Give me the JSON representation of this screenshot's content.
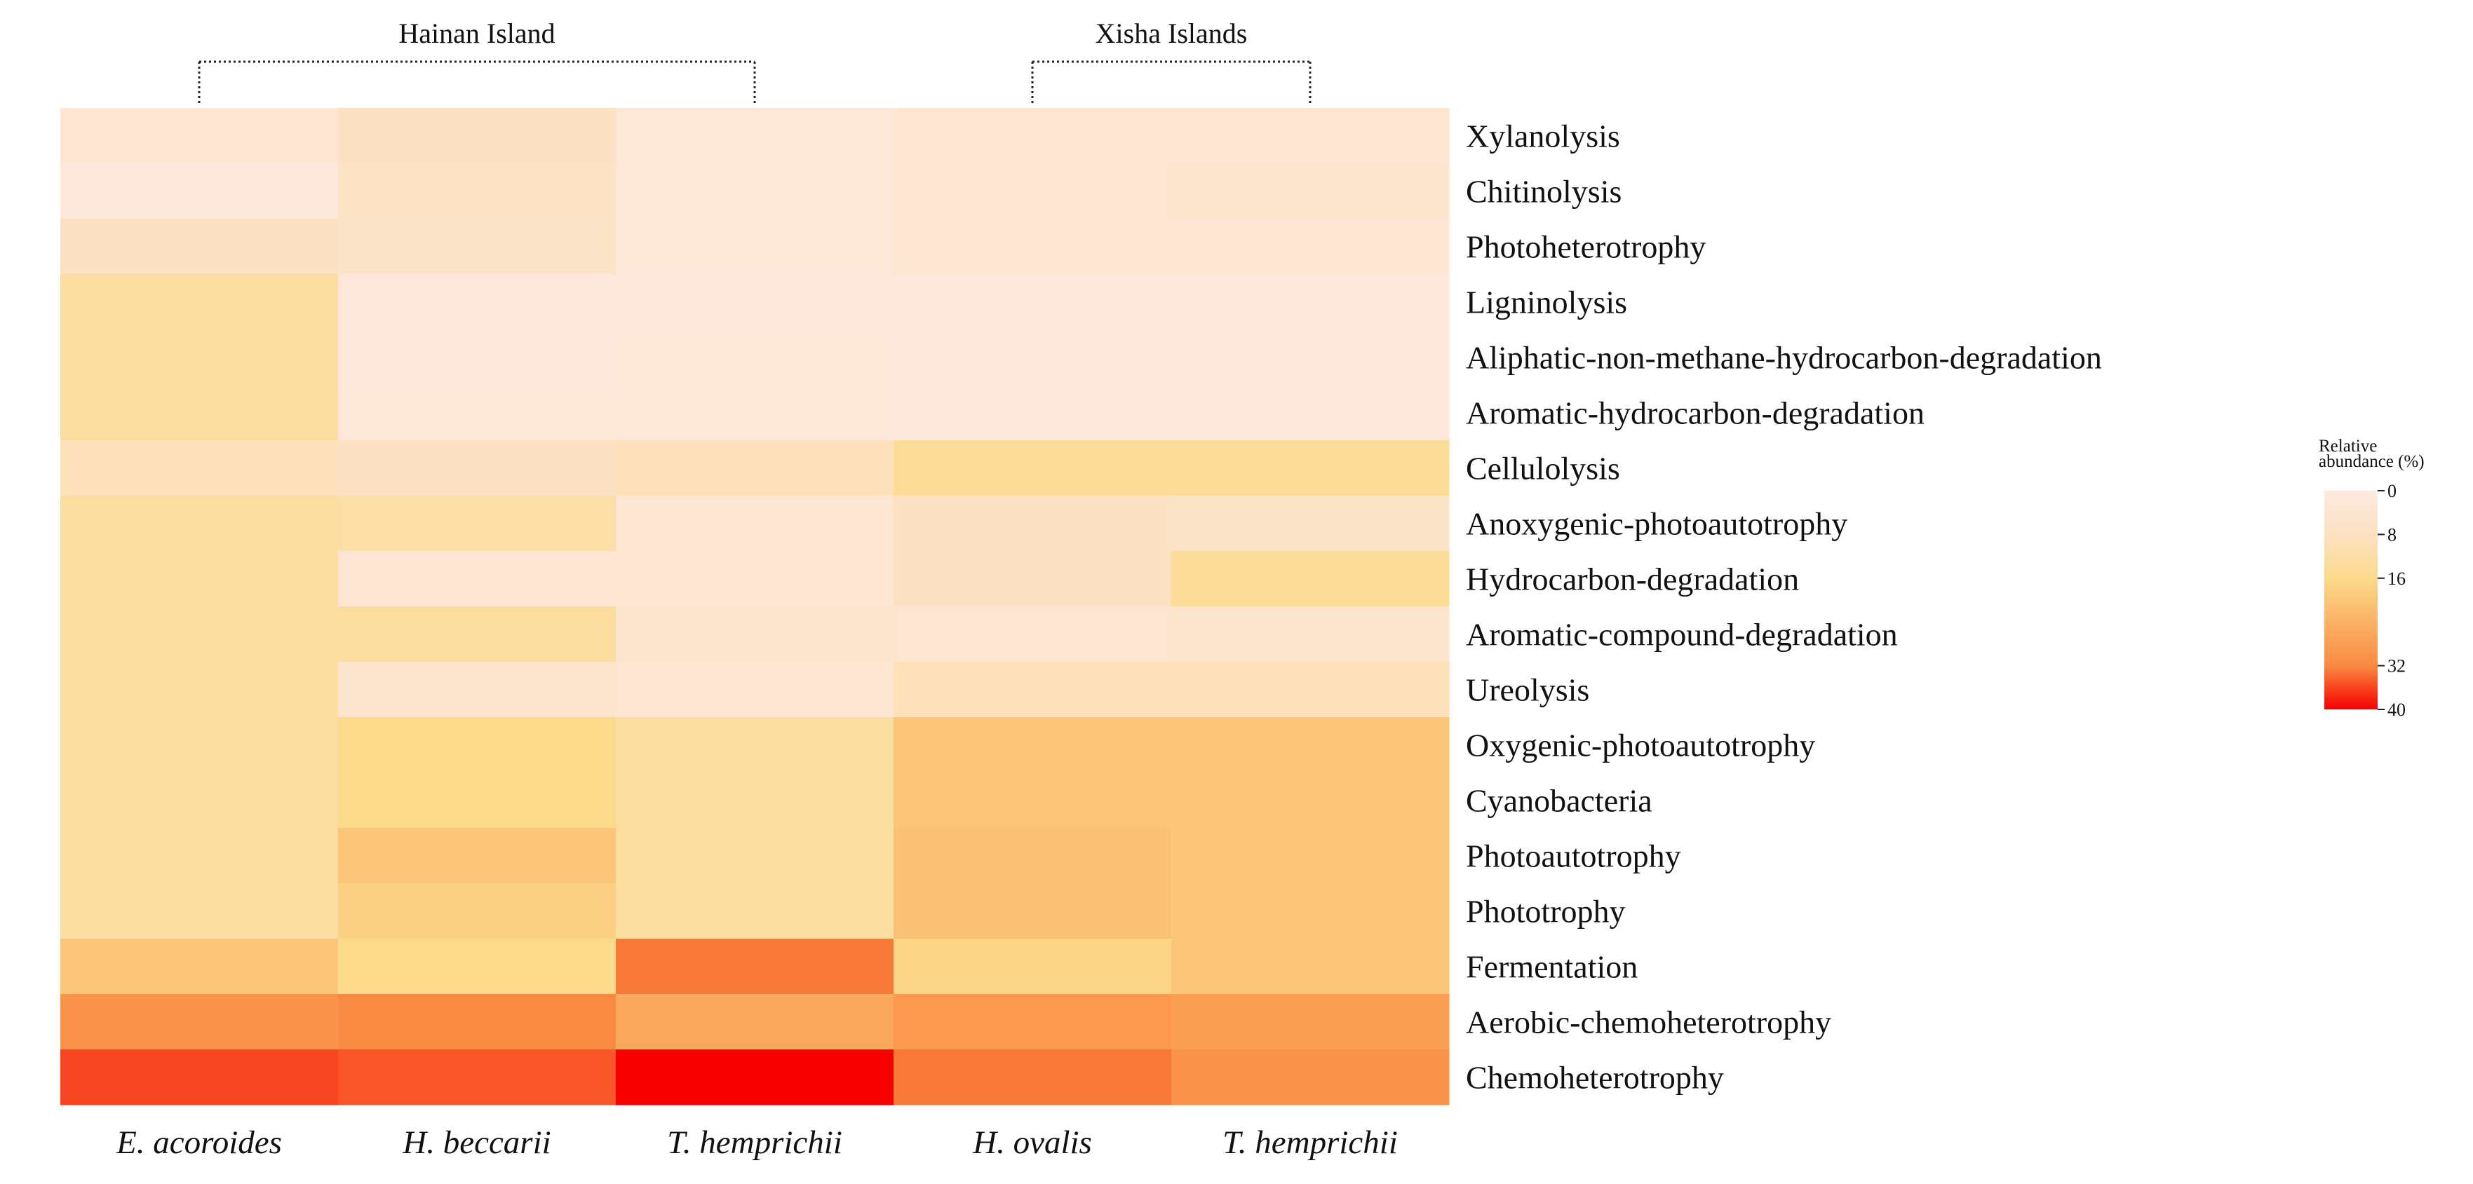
{
  "chart_data": {
    "type": "heatmap",
    "title": "",
    "columns": [
      "E. acoroides",
      "H. beccarii",
      "T. hemprichii",
      "H. ovalis",
      "T. hemprichii"
    ],
    "column_groups": [
      {
        "label": "Hainan Island",
        "columns": [
          0,
          1,
          2
        ]
      },
      {
        "label": "Xisha Islands",
        "columns": [
          3,
          4
        ]
      }
    ],
    "rows": [
      "Xylanolysis",
      "Chitinolysis",
      "Photoheterotrophy",
      "Ligninolysis",
      "Aliphatic-non-methane-hydrocarbon-degradation",
      "Aromatic-hydrocarbon-degradation",
      "Cellulolysis",
      "Anoxygenic-photoautotrophy",
      "Hydrocarbon-degradation",
      "Aromatic-compound-degradation",
      "Ureolysis",
      "Oxygenic-photoautotrophy",
      "Cyanobacteria",
      "Photoautotrophy",
      "Phototrophy",
      "Fermentation",
      "Aerobic-chemoheterotrophy",
      "Chemoheterotrophy"
    ],
    "values": [
      [
        3,
        8,
        2,
        4,
        4
      ],
      [
        1,
        7,
        2,
        4,
        5
      ],
      [
        8,
        6,
        2,
        4,
        3
      ],
      [
        13,
        1,
        1,
        1,
        1
      ],
      [
        13,
        1,
        2,
        1,
        1
      ],
      [
        13,
        2,
        2,
        1,
        1
      ],
      [
        9,
        8,
        9,
        14,
        14
      ],
      [
        13,
        12,
        4,
        8,
        6
      ],
      [
        13,
        4,
        3,
        8,
        14
      ],
      [
        13,
        13,
        5,
        4,
        5
      ],
      [
        13,
        5,
        3,
        9,
        9
      ],
      [
        13,
        16,
        13,
        20,
        20
      ],
      [
        13,
        16,
        13,
        20,
        20
      ],
      [
        13,
        20,
        13,
        21,
        20
      ],
      [
        13,
        18,
        13,
        21,
        20
      ],
      [
        20,
        16,
        33,
        17,
        20
      ],
      [
        30,
        32,
        26,
        29,
        28
      ],
      [
        36,
        35,
        40,
        33,
        30
      ]
    ],
    "colorbar": {
      "title": [
        "Relative",
        "abundance (%)"
      ],
      "range": [
        0,
        40
      ],
      "ticks": [
        0,
        8,
        16,
        32,
        40
      ],
      "tick_labels": [
        "0",
        "8",
        "16",
        "32",
        "40"
      ],
      "colors": [
        "#FDE9DF",
        "#FCE2C2",
        "#FCDA8B",
        "#F98A41",
        "#F60000"
      ]
    }
  }
}
